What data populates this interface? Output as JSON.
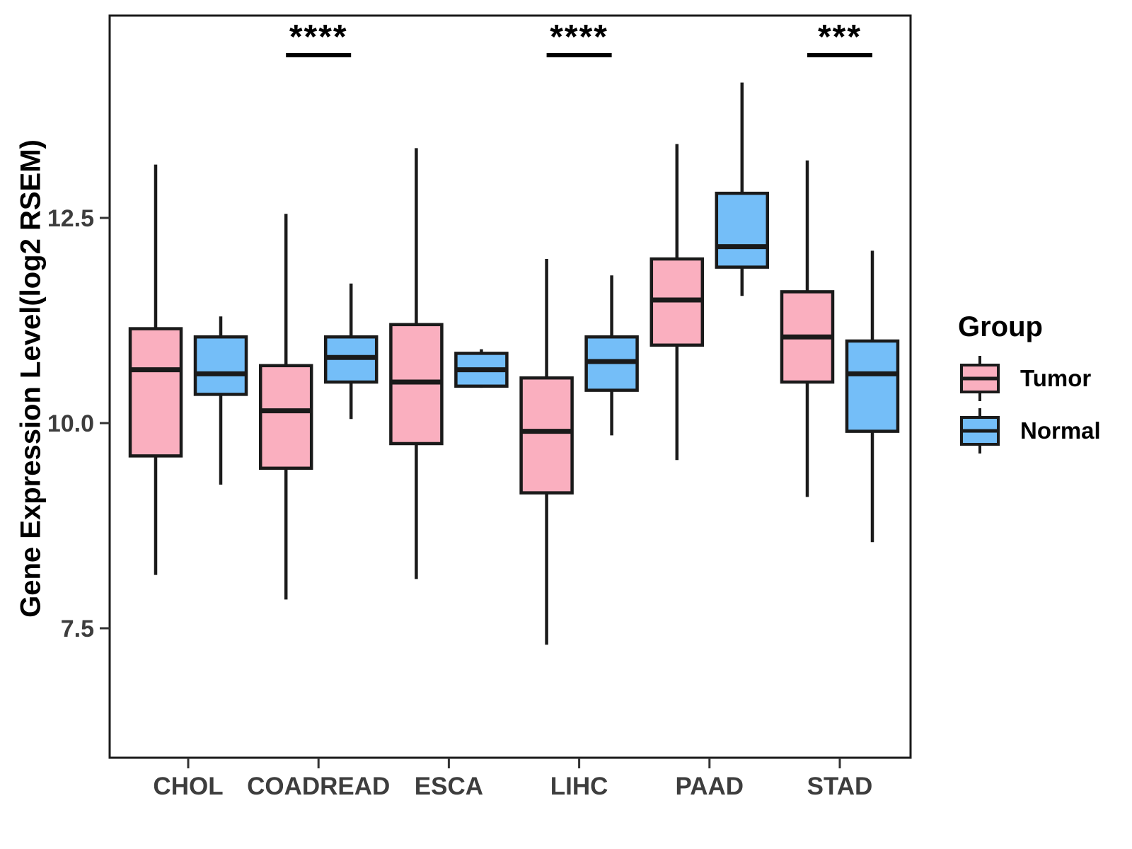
{
  "chart_data": {
    "type": "boxplot",
    "title": "",
    "xlabel": "",
    "ylabel": "Gene Expression Level(log2 RSEM)",
    "categories": [
      "CHOL",
      "COADREAD",
      "ESCA",
      "LIHC",
      "PAAD",
      "STAD"
    ],
    "y_ticks": [
      {
        "value": 7.5,
        "label": "7.5"
      },
      {
        "value": 10.0,
        "label": "10.0"
      },
      {
        "value": 12.5,
        "label": "12.5"
      }
    ],
    "ylim": [
      5.9,
      15.0
    ],
    "grid": "off",
    "colors": {
      "tumor_fill": "#FAAFBF",
      "normal_fill": "#74BEF8",
      "stroke": "#1A1A1A",
      "tick_label": "#3D3D3D",
      "panel_border": "#1A1A1A"
    },
    "legend": {
      "title": "Group",
      "position": "right",
      "entries": [
        {
          "label": "Tumor",
          "color": "#FAAFBF"
        },
        {
          "label": "Normal",
          "color": "#74BEF8"
        }
      ]
    },
    "series": [
      {
        "name": "Tumor",
        "color": "#FAAFBF",
        "boxes": [
          {
            "category": "CHOL",
            "low": 8.15,
            "q1": 9.6,
            "median": 10.65,
            "q3": 11.15,
            "high": 13.15
          },
          {
            "category": "COADREAD",
            "low": 7.85,
            "q1": 9.45,
            "median": 10.15,
            "q3": 10.7,
            "high": 12.55
          },
          {
            "category": "ESCA",
            "low": 8.1,
            "q1": 9.75,
            "median": 10.5,
            "q3": 11.2,
            "high": 13.35
          },
          {
            "category": "LIHC",
            "low": 7.3,
            "q1": 9.15,
            "median": 9.9,
            "q3": 10.55,
            "high": 12.0
          },
          {
            "category": "PAAD",
            "low": 9.55,
            "q1": 10.95,
            "median": 11.5,
            "q3": 12.0,
            "high": 13.4
          },
          {
            "category": "STAD",
            "low": 9.1,
            "q1": 10.5,
            "median": 11.05,
            "q3": 11.6,
            "high": 13.2
          }
        ]
      },
      {
        "name": "Normal",
        "color": "#74BEF8",
        "boxes": [
          {
            "category": "CHOL",
            "low": 9.25,
            "q1": 10.35,
            "median": 10.6,
            "q3": 11.05,
            "high": 11.3
          },
          {
            "category": "COADREAD",
            "low": 10.05,
            "q1": 10.5,
            "median": 10.8,
            "q3": 11.05,
            "high": 11.7
          },
          {
            "category": "ESCA",
            "low": 10.43,
            "q1": 10.45,
            "median": 10.65,
            "q3": 10.85,
            "high": 10.9
          },
          {
            "category": "LIHC",
            "low": 9.85,
            "q1": 10.4,
            "median": 10.75,
            "q3": 11.05,
            "high": 11.8
          },
          {
            "category": "PAAD",
            "low": 11.55,
            "q1": 11.9,
            "median": 12.15,
            "q3": 12.8,
            "high": 14.15
          },
          {
            "category": "STAD",
            "low": 8.55,
            "q1": 9.9,
            "median": 10.6,
            "q3": 11.0,
            "high": 12.1
          }
        ]
      }
    ],
    "significance": [
      {
        "category": "COADREAD",
        "label": "****"
      },
      {
        "category": "LIHC",
        "label": "****"
      },
      {
        "category": "STAD",
        "label": "***"
      }
    ]
  }
}
